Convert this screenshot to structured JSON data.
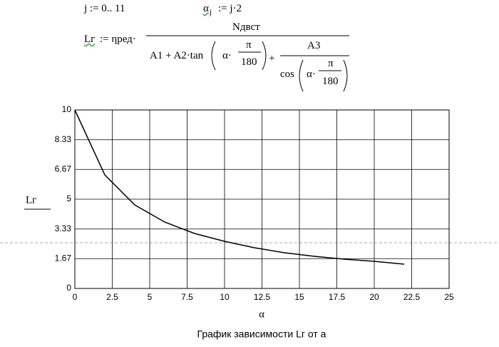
{
  "formulas": {
    "j_def": "j := 0.. 11",
    "alpha_lhs": "α",
    "alpha_sub": "j",
    "alpha_rhs": ":= j·2",
    "lg_lhs": "Lг",
    "lg_assign": ":= ηред·",
    "numerator": "Nдвст",
    "den_a": "A1 + A2·tan",
    "alpha1": "α·",
    "pi1": "π",
    "deg1": "180",
    "plus": "+",
    "a3": "A3",
    "cos": "cos",
    "alpha2": "α·",
    "pi2": "π",
    "deg2": "180"
  },
  "chart_data": {
    "type": "line",
    "x_label": "α",
    "y_label": "Lг",
    "caption": "График зависимости Lг от а",
    "x": [
      0,
      2,
      4,
      6,
      8,
      10,
      12,
      14,
      16,
      18,
      20,
      22
    ],
    "values": [
      10,
      6.36,
      4.68,
      3.72,
      3.08,
      2.64,
      2.28,
      2.0,
      1.8,
      1.64,
      1.52,
      1.36
    ],
    "color": "#000000",
    "xlim": [
      0,
      25
    ],
    "ylim": [
      0,
      10
    ],
    "xticks": [
      0,
      2.5,
      5,
      7.5,
      10,
      12.5,
      15,
      17.5,
      20,
      22.5,
      25
    ],
    "yticks": [
      0,
      1.67,
      3.33,
      5,
      6.67,
      8.33,
      10
    ],
    "grid": true
  }
}
